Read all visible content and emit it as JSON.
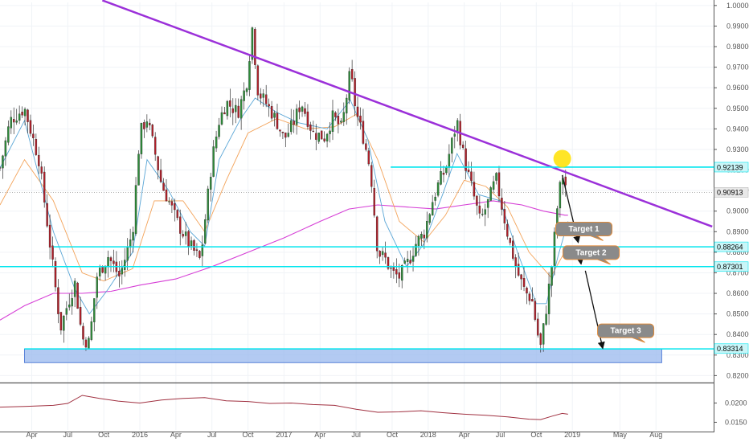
{
  "chart_data": {
    "type": "candlestick",
    "instrument_note": "",
    "colors": {
      "bull": "#2e8b3a",
      "bear": "#b0202a",
      "trendline": "#9b30d9",
      "level": "#00e5ee",
      "zone_fill": "#9ab8ee",
      "zone_border": "#5a82d8",
      "ema_fast": "#5aa6d6",
      "ema_slow": "#f3a35a",
      "ma_long": "#d63fd6",
      "indicator": "#a03040",
      "bubble": "#8a8a8a",
      "bubble_border": "#e08a3a",
      "marker": "#ffe000",
      "current_tag": "#e8e8e8",
      "level_tag": "#c9f6f8"
    },
    "main_pane": {
      "ylim": [
        0.8182,
        1.0015
      ],
      "y_ticks": [
        "1.00000",
        "0.99000",
        "0.98000",
        "0.97000",
        "0.96000",
        "0.95000",
        "0.94000",
        "0.93000",
        "0.92000",
        "0.91000",
        "0.90000",
        "0.89000",
        "0.88000",
        "0.87000",
        "0.86000",
        "0.85000",
        "0.84000",
        "0.83000",
        "0.82000"
      ],
      "price_tags": [
        {
          "label": "0.92139",
          "value": 0.92139,
          "kind": "level"
        },
        {
          "label": "0.90913",
          "value": 0.90913,
          "kind": "current"
        },
        {
          "label": "0.88264",
          "value": 0.88264,
          "kind": "level"
        },
        {
          "label": "0.87301",
          "value": 0.87301,
          "kind": "level"
        },
        {
          "label": "0.83314",
          "value": 0.83314,
          "kind": "level"
        }
      ],
      "levels": [
        {
          "value": 0.92139,
          "x_start": 2017.74
        },
        {
          "value": 0.88264,
          "x_start": 2015.4
        },
        {
          "value": 0.87301,
          "x_start": 2015.0
        }
      ],
      "current_price": 0.90913,
      "zone": {
        "x": [
          2015.2,
          2019.62
        ],
        "y": [
          0.8263,
          0.833
        ]
      },
      "trendline": {
        "points": [
          [
            2015.74,
            1.0025
          ],
          [
            2019.97,
            0.8925
          ]
        ]
      },
      "marker": {
        "x": 2018.93,
        "y": 0.9255
      },
      "targets": [
        {
          "label": "Target 1",
          "arrow": [
            [
              2018.93,
              0.9175
            ],
            [
              2019.04,
              0.885
            ]
          ],
          "bubble": [
            2019.08,
            0.8915
          ]
        },
        {
          "label": "Target 2",
          "arrow": [
            [
              2019.04,
              0.883
            ],
            [
              2019.06,
              0.8745
            ]
          ],
          "bubble": [
            2019.13,
            0.88
          ]
        },
        {
          "label": "Target 3",
          "arrow": [
            [
              2019.09,
              0.871
            ],
            [
              2019.21,
              0.8335
            ]
          ],
          "bubble": [
            2019.37,
            0.842
          ]
        }
      ]
    },
    "lower_pane": {
      "ylim": [
        0.013,
        0.0245
      ],
      "y_ticks": [
        "0.0200",
        "0.0150"
      ],
      "series": [
        [
          2015.0,
          0.0189
        ],
        [
          2015.2,
          0.0191
        ],
        [
          2015.4,
          0.0194
        ],
        [
          2015.5,
          0.0199
        ],
        [
          2015.6,
          0.022
        ],
        [
          2015.72,
          0.0212
        ],
        [
          2015.85,
          0.0205
        ],
        [
          2016.0,
          0.02
        ],
        [
          2016.15,
          0.0208
        ],
        [
          2016.3,
          0.0212
        ],
        [
          2016.45,
          0.0214
        ],
        [
          2016.6,
          0.0206
        ],
        [
          2016.75,
          0.0204
        ],
        [
          2016.9,
          0.0199
        ],
        [
          2017.05,
          0.02
        ],
        [
          2017.2,
          0.0196
        ],
        [
          2017.35,
          0.0194
        ],
        [
          2017.5,
          0.0184
        ],
        [
          2017.65,
          0.0176
        ],
        [
          2017.8,
          0.0177
        ],
        [
          2017.95,
          0.018
        ],
        [
          2018.1,
          0.0175
        ],
        [
          2018.25,
          0.0171
        ],
        [
          2018.4,
          0.0168
        ],
        [
          2018.55,
          0.0164
        ],
        [
          2018.7,
          0.0158
        ],
        [
          2018.78,
          0.0157
        ],
        [
          2018.86,
          0.0166
        ],
        [
          2018.93,
          0.0173
        ],
        [
          2018.97,
          0.0171
        ]
      ]
    },
    "x_axis": {
      "xlim": [
        2015.03,
        2019.98
      ],
      "ticks": [
        {
          "label": "Apr",
          "x": 2015.25
        },
        {
          "label": "Jul",
          "x": 2015.5
        },
        {
          "label": "Oct",
          "x": 2015.75
        },
        {
          "label": "2016",
          "x": 2016.0
        },
        {
          "label": "Apr",
          "x": 2016.25
        },
        {
          "label": "Jul",
          "x": 2016.5
        },
        {
          "label": "Oct",
          "x": 2016.75
        },
        {
          "label": "2017",
          "x": 2017.0
        },
        {
          "label": "Apr",
          "x": 2017.25
        },
        {
          "label": "Jul",
          "x": 2017.5
        },
        {
          "label": "Oct",
          "x": 2017.75
        },
        {
          "label": "2018",
          "x": 2018.0
        },
        {
          "label": "Apr",
          "x": 2018.25
        },
        {
          "label": "Jul",
          "x": 2018.5
        },
        {
          "label": "Oct",
          "x": 2018.75
        },
        {
          "label": "2019",
          "x": 2019.0
        },
        {
          "label": "May",
          "x": 2019.33
        },
        {
          "label": "Aug",
          "x": 2019.58
        }
      ]
    },
    "close_path": [
      [
        2015.03,
        0.921
      ],
      [
        2015.1,
        0.944
      ],
      [
        2015.2,
        0.95
      ],
      [
        2015.3,
        0.925
      ],
      [
        2015.38,
        0.882
      ],
      [
        2015.45,
        0.843
      ],
      [
        2015.5,
        0.855
      ],
      [
        2015.55,
        0.865
      ],
      [
        2015.6,
        0.838
      ],
      [
        2015.65,
        0.836
      ],
      [
        2015.7,
        0.868
      ],
      [
        2015.78,
        0.878
      ],
      [
        2015.86,
        0.868
      ],
      [
        2015.95,
        0.89
      ],
      [
        2016.0,
        0.938
      ],
      [
        2016.05,
        0.945
      ],
      [
        2016.1,
        0.93
      ],
      [
        2016.15,
        0.913
      ],
      [
        2016.2,
        0.905
      ],
      [
        2016.27,
        0.893
      ],
      [
        2016.35,
        0.883
      ],
      [
        2016.42,
        0.876
      ],
      [
        2016.5,
        0.925
      ],
      [
        2016.55,
        0.944
      ],
      [
        2016.6,
        0.953
      ],
      [
        2016.68,
        0.948
      ],
      [
        2016.74,
        0.962
      ],
      [
        2016.78,
        0.989
      ],
      [
        2016.82,
        0.958
      ],
      [
        2016.88,
        0.952
      ],
      [
        2016.94,
        0.945
      ],
      [
        2017.0,
        0.935
      ],
      [
        2017.06,
        0.942
      ],
      [
        2017.12,
        0.953
      ],
      [
        2017.2,
        0.938
      ],
      [
        2017.28,
        0.936
      ],
      [
        2017.34,
        0.946
      ],
      [
        2017.4,
        0.94
      ],
      [
        2017.46,
        0.968
      ],
      [
        2017.5,
        0.948
      ],
      [
        2017.55,
        0.936
      ],
      [
        2017.6,
        0.92
      ],
      [
        2017.65,
        0.88
      ],
      [
        2017.7,
        0.877
      ],
      [
        2017.75,
        0.87
      ],
      [
        2017.8,
        0.868
      ],
      [
        2017.86,
        0.875
      ],
      [
        2017.92,
        0.885
      ],
      [
        2017.97,
        0.889
      ],
      [
        2018.03,
        0.905
      ],
      [
        2018.08,
        0.915
      ],
      [
        2018.12,
        0.92
      ],
      [
        2018.17,
        0.935
      ],
      [
        2018.2,
        0.944
      ],
      [
        2018.25,
        0.925
      ],
      [
        2018.3,
        0.912
      ],
      [
        2018.36,
        0.895
      ],
      [
        2018.42,
        0.905
      ],
      [
        2018.47,
        0.916
      ],
      [
        2018.5,
        0.906
      ],
      [
        2018.56,
        0.886
      ],
      [
        2018.62,
        0.87
      ],
      [
        2018.67,
        0.861
      ],
      [
        2018.72,
        0.857
      ],
      [
        2018.76,
        0.84
      ],
      [
        2018.78,
        0.834
      ],
      [
        2018.81,
        0.848
      ],
      [
        2018.86,
        0.875
      ],
      [
        2018.9,
        0.905
      ],
      [
        2018.93,
        0.918
      ],
      [
        2018.97,
        0.909
      ]
    ],
    "ema_fast": [
      [
        2015.03,
        0.921
      ],
      [
        2015.2,
        0.944
      ],
      [
        2015.4,
        0.89
      ],
      [
        2015.55,
        0.862
      ],
      [
        2015.65,
        0.85
      ],
      [
        2015.78,
        0.862
      ],
      [
        2015.95,
        0.88
      ],
      [
        2016.05,
        0.925
      ],
      [
        2016.2,
        0.91
      ],
      [
        2016.35,
        0.89
      ],
      [
        2016.45,
        0.883
      ],
      [
        2016.55,
        0.925
      ],
      [
        2016.7,
        0.945
      ],
      [
        2016.8,
        0.955
      ],
      [
        2016.95,
        0.948
      ],
      [
        2017.1,
        0.943
      ],
      [
        2017.3,
        0.94
      ],
      [
        2017.46,
        0.954
      ],
      [
        2017.58,
        0.935
      ],
      [
        2017.7,
        0.895
      ],
      [
        2017.85,
        0.873
      ],
      [
        2017.97,
        0.884
      ],
      [
        2018.1,
        0.908
      ],
      [
        2018.2,
        0.928
      ],
      [
        2018.35,
        0.908
      ],
      [
        2018.5,
        0.905
      ],
      [
        2018.62,
        0.88
      ],
      [
        2018.75,
        0.855
      ],
      [
        2018.82,
        0.855
      ],
      [
        2018.9,
        0.878
      ],
      [
        2018.97,
        0.895
      ]
    ],
    "ema_slow": [
      [
        2015.03,
        0.903
      ],
      [
        2015.2,
        0.925
      ],
      [
        2015.4,
        0.905
      ],
      [
        2015.6,
        0.87
      ],
      [
        2015.75,
        0.866
      ],
      [
        2015.95,
        0.872
      ],
      [
        2016.1,
        0.905
      ],
      [
        2016.3,
        0.905
      ],
      [
        2016.45,
        0.89
      ],
      [
        2016.6,
        0.915
      ],
      [
        2016.75,
        0.938
      ],
      [
        2016.95,
        0.945
      ],
      [
        2017.15,
        0.94
      ],
      [
        2017.35,
        0.941
      ],
      [
        2017.5,
        0.947
      ],
      [
        2017.65,
        0.925
      ],
      [
        2017.8,
        0.895
      ],
      [
        2017.97,
        0.885
      ],
      [
        2018.12,
        0.898
      ],
      [
        2018.25,
        0.915
      ],
      [
        2018.4,
        0.912
      ],
      [
        2018.55,
        0.902
      ],
      [
        2018.7,
        0.88
      ],
      [
        2018.85,
        0.868
      ],
      [
        2018.97,
        0.883
      ]
    ],
    "ma_long": [
      [
        2015.03,
        0.847
      ],
      [
        2015.2,
        0.854
      ],
      [
        2015.4,
        0.86
      ],
      [
        2015.6,
        0.86
      ],
      [
        2015.8,
        0.861
      ],
      [
        2016.0,
        0.864
      ],
      [
        2016.25,
        0.867
      ],
      [
        2016.5,
        0.873
      ],
      [
        2016.75,
        0.88
      ],
      [
        2017.0,
        0.887
      ],
      [
        2017.25,
        0.895
      ],
      [
        2017.45,
        0.901
      ],
      [
        2017.65,
        0.903
      ],
      [
        2017.85,
        0.902
      ],
      [
        2018.05,
        0.901
      ],
      [
        2018.25,
        0.903
      ],
      [
        2018.45,
        0.905
      ],
      [
        2018.65,
        0.903
      ],
      [
        2018.8,
        0.9
      ],
      [
        2018.95,
        0.898
      ],
      [
        2018.97,
        0.898
      ]
    ]
  }
}
